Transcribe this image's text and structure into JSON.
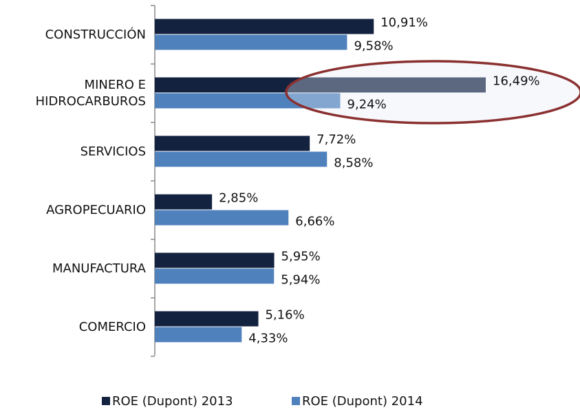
{
  "chart_data": {
    "type": "bar",
    "orientation": "horizontal",
    "categories": [
      "CONSTRUCCIÓN",
      "MINERO E HIDROCARBUROS",
      "SERVICIOS",
      "AGROPECUARIO",
      "MANUFACTURA",
      "COMERCIO"
    ],
    "series": [
      {
        "name": "ROE (Dupont) 2013",
        "color": "#13223f",
        "values": [
          10.91,
          16.49,
          7.72,
          2.85,
          5.95,
          5.16
        ],
        "value_labels": [
          "10,91%",
          "16,49%",
          "7,72%",
          "2,85%",
          "5,95%",
          "5,16%"
        ]
      },
      {
        "name": "ROE (Dupont) 2014",
        "color": "#4f81bd",
        "values": [
          9.58,
          9.24,
          8.58,
          6.66,
          5.94,
          4.33
        ],
        "value_labels": [
          "9,58%",
          "9,24%",
          "8,58%",
          "6,66%",
          "5,94%",
          "4,33%"
        ]
      }
    ],
    "legend": "bottom"
  }
}
